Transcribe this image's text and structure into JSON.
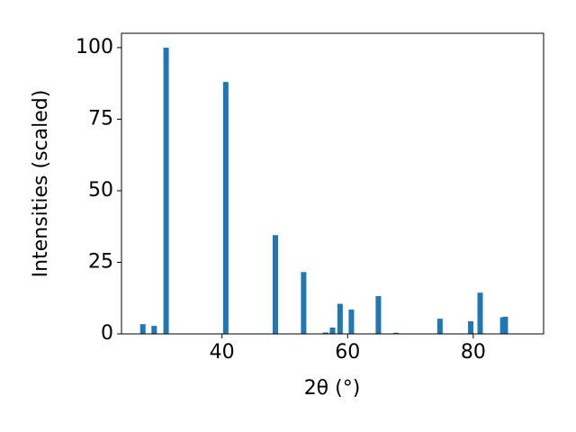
{
  "chart_data": {
    "type": "bar",
    "xlabel": "2θ (°)",
    "ylabel": "Intensities (scaled)",
    "x": [
      27.4,
      29.2,
      31.1,
      40.6,
      48.5,
      53.0,
      56.5,
      57.6,
      58.8,
      60.6,
      64.9,
      67.7,
      74.7,
      79.6,
      81.1,
      84.7,
      85.1
    ],
    "values": [
      3.4,
      2.8,
      100,
      88,
      34.5,
      21.6,
      0.5,
      2.2,
      10.5,
      8.5,
      13.2,
      0.4,
      5.3,
      4.4,
      14.4,
      5.8,
      6
    ],
    "color": "#1f77b4",
    "xlim": [
      24,
      91.2
    ],
    "xticks": [
      40,
      60,
      80
    ],
    "ylim": [
      0,
      105
    ],
    "yticks": [
      0,
      25,
      50,
      75,
      100
    ],
    "grid": false
  }
}
